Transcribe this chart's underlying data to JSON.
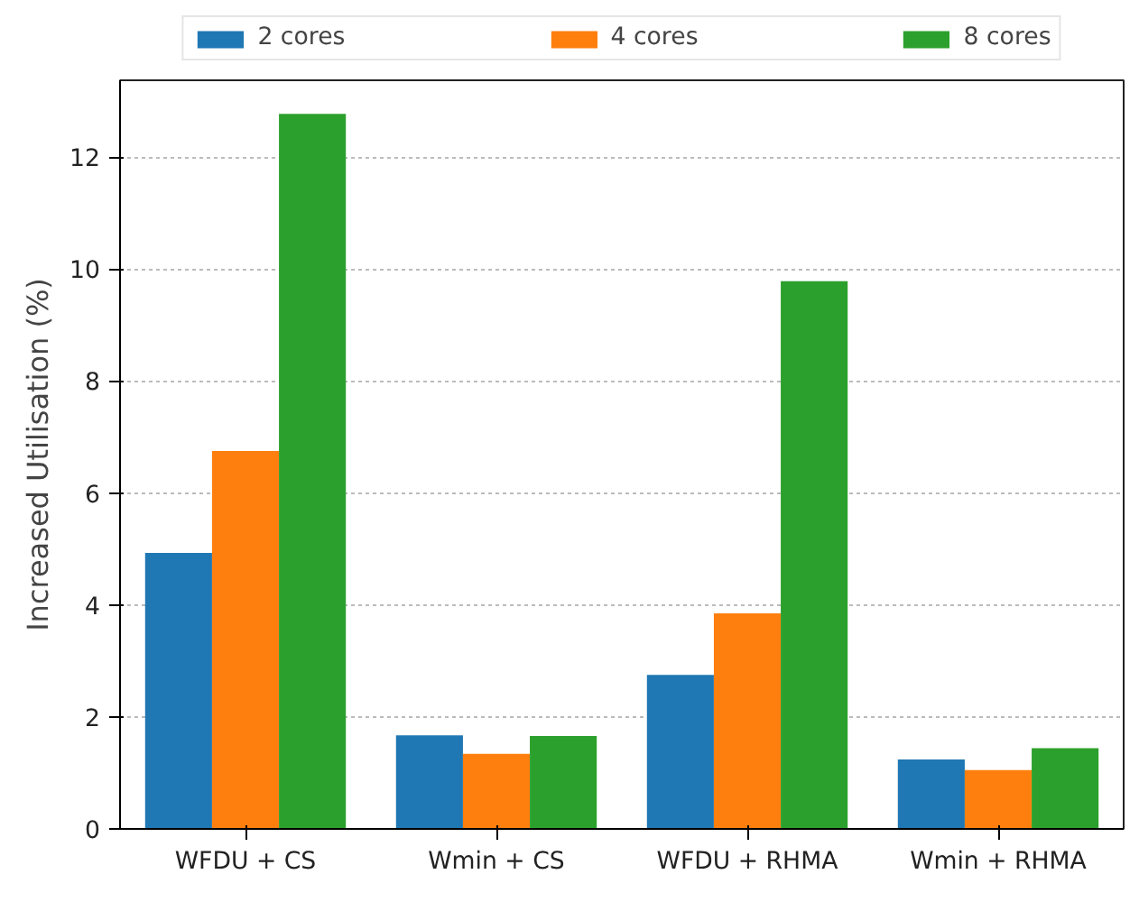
{
  "chart_data": {
    "type": "bar",
    "ylabel": "Increased Utilisation (%)",
    "categories": [
      "WFDU + CS",
      "Wmin + CS",
      "WFDU + RHMA",
      "Wmin + RHMA"
    ],
    "series": [
      {
        "name": "2 cores",
        "color": "#1f77b4",
        "values": [
          4.93,
          1.67,
          2.75,
          1.24
        ]
      },
      {
        "name": "4 cores",
        "color": "#ff7f0e",
        "values": [
          6.75,
          1.34,
          3.85,
          1.05
        ]
      },
      {
        "name": "8 cores",
        "color": "#2ca02c",
        "values": [
          12.77,
          1.66,
          9.78,
          1.44
        ]
      }
    ],
    "ylim": [
      0,
      13.37
    ],
    "yticks": [
      0,
      2,
      4,
      6,
      8,
      10,
      12
    ],
    "grid": "y",
    "legend": "top"
  }
}
